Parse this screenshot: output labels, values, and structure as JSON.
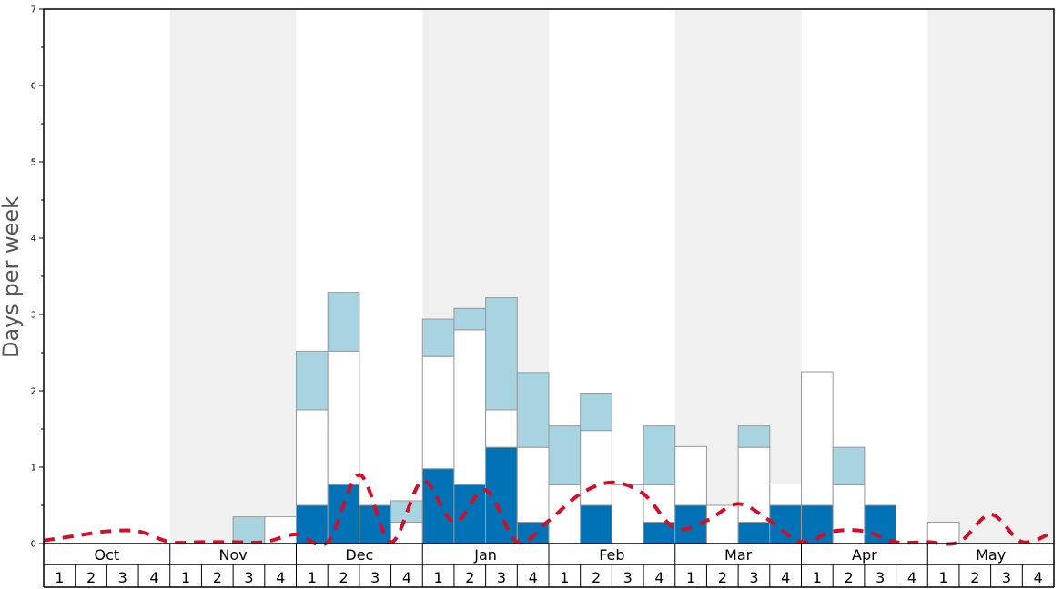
{
  "chart_data": {
    "type": "bar",
    "ylabel": "Days per week",
    "ylim": [
      0,
      7
    ],
    "yticks": [
      "0",
      "1",
      "2",
      "3",
      "4",
      "5",
      "6",
      "7"
    ],
    "months": [
      "Oct",
      "Nov",
      "Dec",
      "Jan",
      "Feb",
      "Mar",
      "Apr",
      "May"
    ],
    "weeks": [
      "1",
      "2",
      "3",
      "4"
    ],
    "colors": {
      "dark": "#0072b5",
      "white": "#ffffff",
      "light": "#a8d3e0",
      "line": "#d0102a",
      "band": "#f0f0f0",
      "bar_edge": "#999999"
    },
    "series": [
      {
        "values": [
          0,
          0,
          0,
          0,
          0,
          0,
          0,
          0,
          0.5,
          0.77,
          0.5,
          0,
          0.98,
          0.77,
          1.26,
          0.28,
          0,
          0.5,
          0,
          0.28,
          0.5,
          0,
          0.28,
          0.5,
          0.5,
          0,
          0.5,
          0,
          0,
          0,
          0,
          0
        ]
      },
      {
        "values": [
          0,
          0,
          0,
          0,
          0,
          0,
          0,
          0.35,
          1.25,
          1.75,
          0,
          0.28,
          1.47,
          2.03,
          0.49,
          0.98,
          0.77,
          0.98,
          0.77,
          0.49,
          0.77,
          0.5,
          0.98,
          0.28,
          1.75,
          0.77,
          0,
          0,
          0.28,
          0,
          0,
          0
        ]
      },
      {
        "values": [
          0,
          0,
          0,
          0,
          0,
          0,
          0.35,
          0,
          0.77,
          0.77,
          0,
          0.28,
          0.49,
          0.28,
          1.47,
          0.98,
          0.77,
          0.49,
          0,
          0.77,
          0,
          0,
          0.28,
          0,
          0,
          0.49,
          0,
          0,
          0,
          0,
          0,
          0
        ]
      }
    ],
    "line": {
      "values": [
        0.04,
        0.1,
        0.16,
        0.16,
        0.02,
        0.02,
        0.02,
        0.02,
        0.12,
        0.02,
        0.9,
        0.02,
        0.82,
        0.28,
        0.7,
        0.02,
        0.3,
        0.65,
        0.8,
        0.65,
        0.2,
        0.3,
        0.52,
        0.3,
        0.02,
        0.16,
        0.16,
        0.02,
        0.02,
        0.02,
        0.38,
        0.02,
        0.16
      ]
    }
  }
}
